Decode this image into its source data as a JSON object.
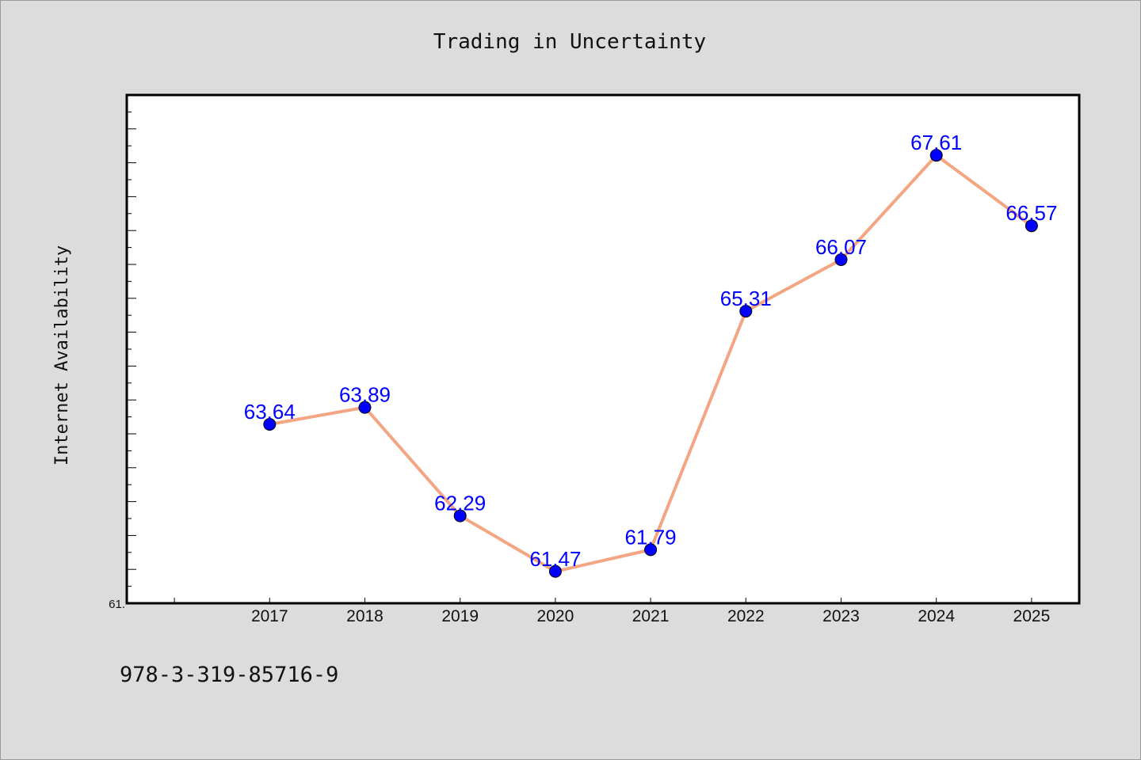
{
  "colors": {
    "background": "#dcdcdc",
    "plot_area": "#ffffff",
    "line": "#f4a582",
    "marker": "#0000ff",
    "data_label": "#0000ff",
    "axis": "#000000"
  },
  "footer": {
    "code": "978-3-319-85716-9"
  },
  "chart_data": {
    "type": "line",
    "title": "Trading in Uncertainty",
    "ylabel": "Internet Availability",
    "xlabel": "",
    "categories": [
      "2017",
      "2018",
      "2019",
      "2020",
      "2021",
      "2022",
      "2023",
      "2024",
      "2025"
    ],
    "series": [
      {
        "values": [
          63.64,
          63.89,
          62.29,
          61.47,
          61.79,
          65.31,
          66.07,
          67.61,
          66.57
        ],
        "labels": [
          "63.64",
          "63.89",
          "62.29",
          "61.47",
          "61.79",
          "65.31",
          "66.07",
          "67.61",
          "66.57"
        ]
      }
    ],
    "ylim": [
      61.0,
      68.5
    ],
    "xlim": [
      2015.5,
      2025.5
    ],
    "y_tick_step": 0.5,
    "y_tick_labels": [
      {
        "value": 61.0,
        "text": "61."
      }
    ],
    "grid": false,
    "legend": "none",
    "markers": true
  }
}
